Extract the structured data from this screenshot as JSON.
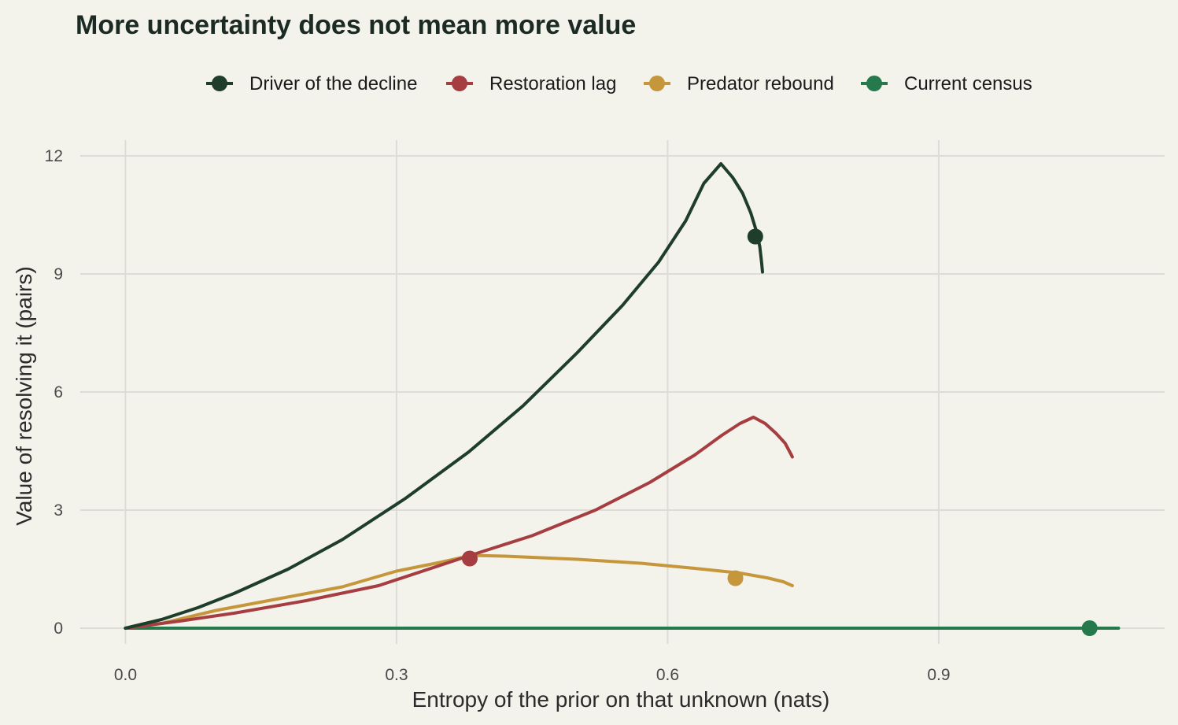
{
  "chart_data": {
    "type": "line",
    "title": "More uncertainty does not mean more value",
    "xlabel": "Entropy of the prior on that unknown (nats)",
    "ylabel": "Value of resolving it (pairs)",
    "xlim": [
      -0.05,
      1.15
    ],
    "ylim": [
      -0.4,
      12.4
    ],
    "x_ticks": [
      0.0,
      0.3,
      0.6,
      0.9
    ],
    "x_tick_labels": [
      "0.0",
      "0.3",
      "0.6",
      "0.9"
    ],
    "y_ticks": [
      0,
      3,
      6,
      9,
      12
    ],
    "y_tick_labels": [
      "0",
      "3",
      "6",
      "9",
      "12"
    ],
    "grid": true,
    "legend_position": "top",
    "series": [
      {
        "name": "Driver of the decline",
        "color": "#1f3d2b",
        "points": [
          [
            0.0,
            0.0
          ],
          [
            0.04,
            0.22
          ],
          [
            0.08,
            0.52
          ],
          [
            0.12,
            0.88
          ],
          [
            0.18,
            1.5
          ],
          [
            0.24,
            2.25
          ],
          [
            0.31,
            3.3
          ],
          [
            0.38,
            4.48
          ],
          [
            0.44,
            5.65
          ],
          [
            0.5,
            7.0
          ],
          [
            0.55,
            8.2
          ],
          [
            0.59,
            9.3
          ],
          [
            0.62,
            10.35
          ],
          [
            0.64,
            11.3
          ],
          [
            0.659,
            11.8
          ],
          [
            0.672,
            11.45
          ],
          [
            0.683,
            11.05
          ],
          [
            0.692,
            10.55
          ],
          [
            0.698,
            10.1
          ],
          [
            0.702,
            9.7
          ],
          [
            0.704,
            9.3
          ],
          [
            0.705,
            9.05
          ]
        ],
        "marker": [
          0.697,
          9.95
        ]
      },
      {
        "name": "Restoration lag",
        "color": "#a63d40",
        "points": [
          [
            0.0,
            0.0
          ],
          [
            0.06,
            0.18
          ],
          [
            0.12,
            0.38
          ],
          [
            0.2,
            0.7
          ],
          [
            0.28,
            1.08
          ],
          [
            0.375,
            1.8
          ],
          [
            0.45,
            2.35
          ],
          [
            0.52,
            3.0
          ],
          [
            0.58,
            3.7
          ],
          [
            0.63,
            4.4
          ],
          [
            0.66,
            4.9
          ],
          [
            0.68,
            5.2
          ],
          [
            0.695,
            5.36
          ],
          [
            0.708,
            5.2
          ],
          [
            0.72,
            4.95
          ],
          [
            0.73,
            4.7
          ],
          [
            0.737,
            4.4
          ],
          [
            0.738,
            4.35
          ]
        ],
        "marker": [
          0.381,
          1.77
        ]
      },
      {
        "name": "Predator rebound",
        "color": "#c5973a",
        "points": [
          [
            0.0,
            0.0
          ],
          [
            0.04,
            0.12
          ],
          [
            0.1,
            0.45
          ],
          [
            0.17,
            0.75
          ],
          [
            0.24,
            1.05
          ],
          [
            0.3,
            1.45
          ],
          [
            0.35,
            1.68
          ],
          [
            0.383,
            1.85
          ],
          [
            0.42,
            1.83
          ],
          [
            0.5,
            1.75
          ],
          [
            0.57,
            1.65
          ],
          [
            0.63,
            1.52
          ],
          [
            0.68,
            1.4
          ],
          [
            0.71,
            1.28
          ],
          [
            0.728,
            1.18
          ],
          [
            0.738,
            1.08
          ]
        ],
        "marker": [
          0.675,
          1.27
        ]
      },
      {
        "name": "Current census",
        "color": "#26784d",
        "points": [
          [
            0.0,
            0.0
          ],
          [
            1.099,
            0.0
          ]
        ],
        "marker": [
          1.067,
          0.0
        ]
      }
    ]
  }
}
